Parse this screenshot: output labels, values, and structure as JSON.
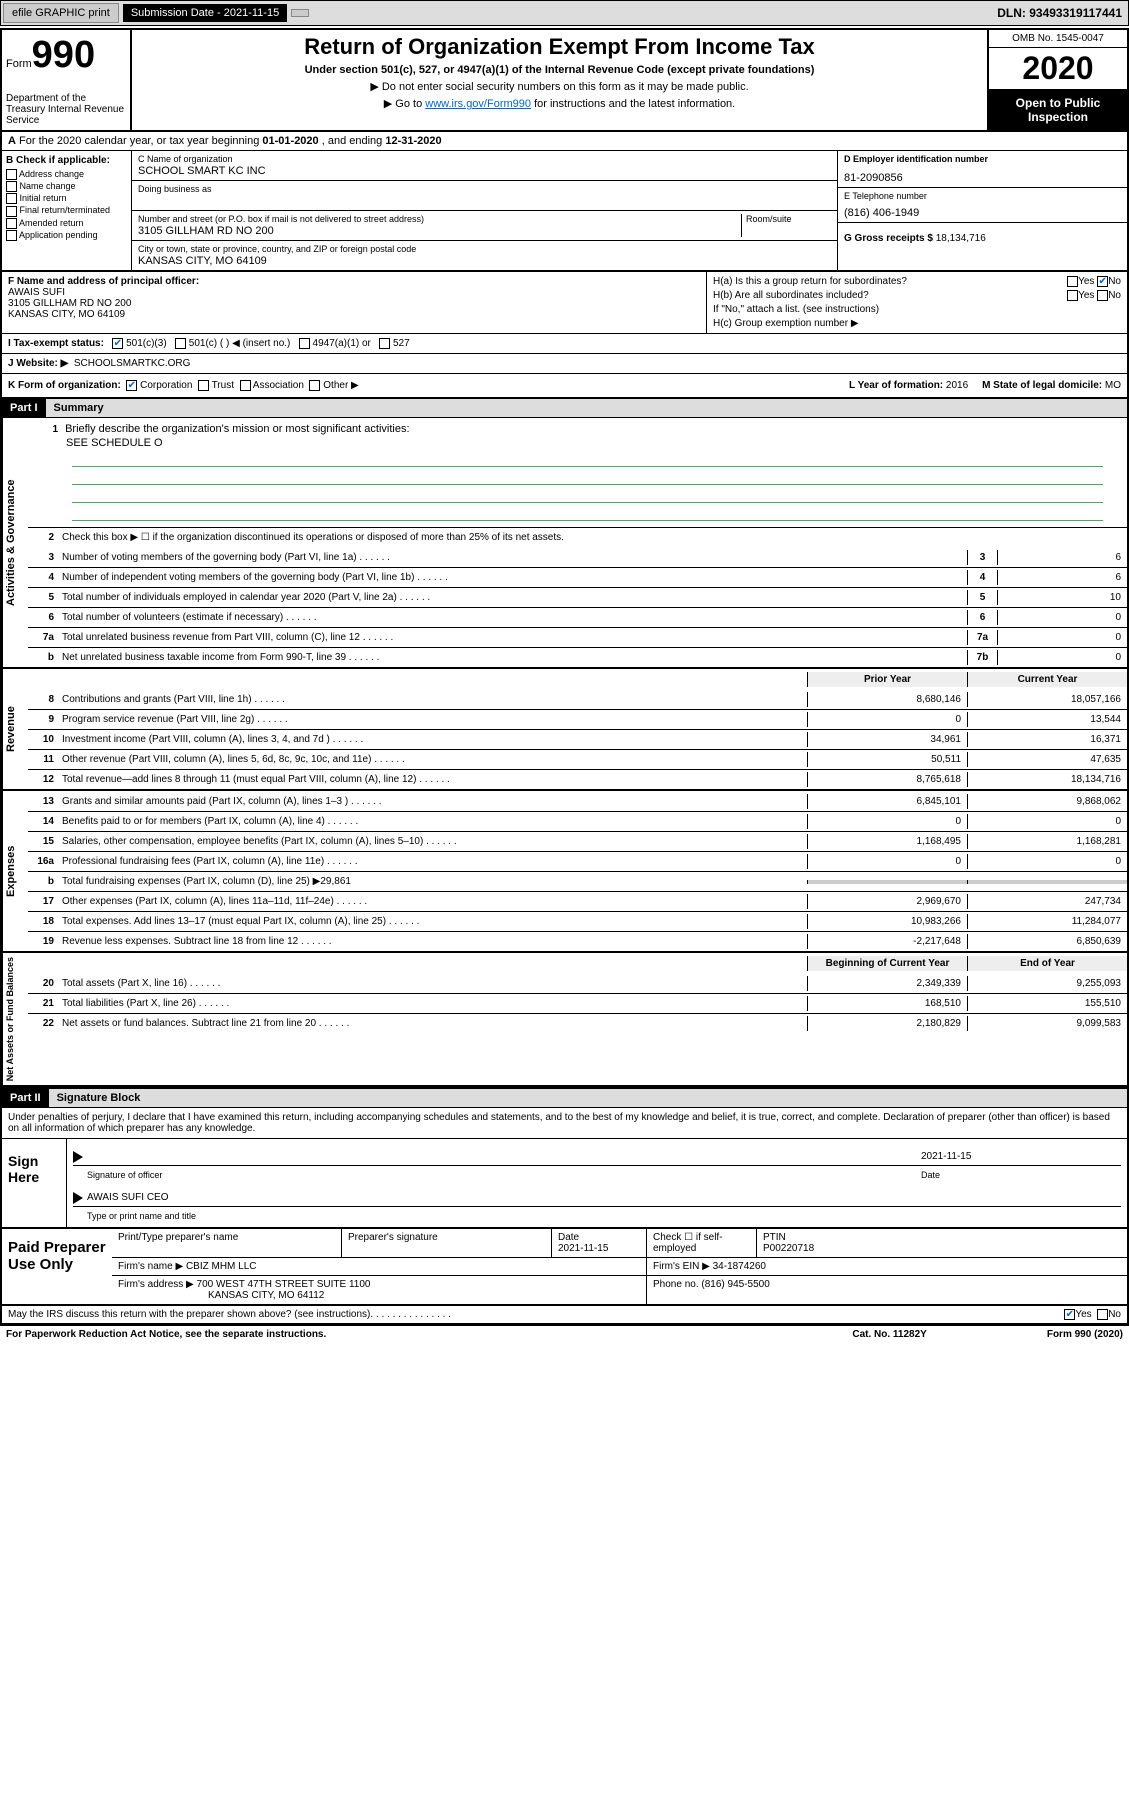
{
  "top_bar": {
    "efile": "efile GRAPHIC print",
    "submission_label": "Submission Date - 2021-11-15",
    "dln": "DLN: 93493319117441"
  },
  "header": {
    "form_word": "Form",
    "form_number": "990",
    "dept": "Department of the Treasury\nInternal Revenue Service",
    "title": "Return of Organization Exempt From Income Tax",
    "subtitle": "Under section 501(c), 527, or 4947(a)(1) of the Internal Revenue Code (except private foundations)",
    "note1": "▶ Do not enter social security numbers on this form as it may be made public.",
    "note2_pre": "▶ Go to ",
    "note2_link": "www.irs.gov/Form990",
    "note2_post": " for instructions and the latest information.",
    "omb": "OMB No. 1545-0047",
    "year": "2020",
    "open_public": "Open to Public Inspection"
  },
  "row_a": {
    "text_pre": "For the 2020 calendar year, or tax year beginning ",
    "begin": "01-01-2020",
    "mid": " , and ending ",
    "end": "12-31-2020"
  },
  "col_b": {
    "header": "B Check if applicable:",
    "opts": [
      "Address change",
      "Name change",
      "Initial return",
      "Final return/terminated",
      "Amended return",
      "Application pending"
    ]
  },
  "block_c": {
    "c_label": "C Name of organization",
    "c_name": "SCHOOL SMART KC INC",
    "dba_label": "Doing business as",
    "addr_label": "Number and street (or P.O. box if mail is not delivered to street address)",
    "room_label": "Room/suite",
    "addr": "3105 GILLHAM RD NO 200",
    "city_label": "City or town, state or province, country, and ZIP or foreign postal code",
    "city": "KANSAS CITY, MO  64109"
  },
  "block_d": {
    "d_label": "D Employer identification number",
    "ein": "81-2090856",
    "e_label": "E Telephone number",
    "phone": "(816) 406-1949",
    "g_label": "G Gross receipts $",
    "g_val": "18,134,716"
  },
  "block_f": {
    "f_label": "F Name and address of principal officer:",
    "name": "AWAIS SUFI",
    "addr1": "3105 GILLHAM RD NO 200",
    "addr2": "KANSAS CITY, MO  64109"
  },
  "block_h": {
    "ha": "H(a)  Is this a group return for subordinates?",
    "hb": "H(b)  Are all subordinates included?",
    "hb_note": "If \"No,\" attach a list. (see instructions)",
    "hc": "H(c)  Group exemption number ▶"
  },
  "row_i": {
    "label": "I  Tax-exempt status:",
    "opts": [
      "501(c)(3)",
      "501(c) (  ) ◀ (insert no.)",
      "4947(a)(1) or",
      "527"
    ]
  },
  "row_j": {
    "label": "J  Website: ▶",
    "val": "SCHOOLSMARTKC.ORG"
  },
  "row_k": {
    "k_label": "K Form of organization:",
    "k_opts": [
      "Corporation",
      "Trust",
      "Association",
      "Other ▶"
    ],
    "l_label": "L Year of formation:",
    "l_val": "2016",
    "m_label": "M State of legal domicile:",
    "m_val": "MO"
  },
  "part1": {
    "label": "Part I",
    "title": "Summary"
  },
  "summary": {
    "sections": [
      {
        "vert": "Activities & Governance",
        "lines": [
          {
            "num": "1",
            "desc": "Briefly describe the organization's mission or most significant activities:",
            "free": "SEE SCHEDULE O"
          },
          {
            "num": "2",
            "desc": "Check this box ▶ ☐  if the organization discontinued its operations or disposed of more than 25% of its net assets."
          },
          {
            "num": "3",
            "desc": "Number of voting members of the governing body (Part VI, line 1a)",
            "box": "3",
            "val": "6"
          },
          {
            "num": "4",
            "desc": "Number of independent voting members of the governing body (Part VI, line 1b)",
            "box": "4",
            "val": "6"
          },
          {
            "num": "5",
            "desc": "Total number of individuals employed in calendar year 2020 (Part V, line 2a)",
            "box": "5",
            "val": "10"
          },
          {
            "num": "6",
            "desc": "Total number of volunteers (estimate if necessary)",
            "box": "6",
            "val": "0"
          },
          {
            "num": "7a",
            "desc": "Total unrelated business revenue from Part VIII, column (C), line 12",
            "box": "7a",
            "val": "0"
          },
          {
            "num": "b",
            "desc": "Net unrelated business taxable income from Form 990-T, line 39",
            "box": "7b",
            "val": "0"
          }
        ]
      }
    ],
    "col_hdr": {
      "prior": "Prior Year",
      "curr": "Current Year"
    },
    "revenue": {
      "vert": "Revenue",
      "lines": [
        {
          "num": "8",
          "desc": "Contributions and grants (Part VIII, line 1h)",
          "prior": "8,680,146",
          "curr": "18,057,166"
        },
        {
          "num": "9",
          "desc": "Program service revenue (Part VIII, line 2g)",
          "prior": "0",
          "curr": "13,544"
        },
        {
          "num": "10",
          "desc": "Investment income (Part VIII, column (A), lines 3, 4, and 7d )",
          "prior": "34,961",
          "curr": "16,371"
        },
        {
          "num": "11",
          "desc": "Other revenue (Part VIII, column (A), lines 5, 6d, 8c, 9c, 10c, and 11e)",
          "prior": "50,511",
          "curr": "47,635"
        },
        {
          "num": "12",
          "desc": "Total revenue—add lines 8 through 11 (must equal Part VIII, column (A), line 12)",
          "prior": "8,765,618",
          "curr": "18,134,716"
        }
      ]
    },
    "expenses": {
      "vert": "Expenses",
      "lines": [
        {
          "num": "13",
          "desc": "Grants and similar amounts paid (Part IX, column (A), lines 1–3 )",
          "prior": "6,845,101",
          "curr": "9,868,062"
        },
        {
          "num": "14",
          "desc": "Benefits paid to or for members (Part IX, column (A), line 4)",
          "prior": "0",
          "curr": "0"
        },
        {
          "num": "15",
          "desc": "Salaries, other compensation, employee benefits (Part IX, column (A), lines 5–10)",
          "prior": "1,168,495",
          "curr": "1,168,281"
        },
        {
          "num": "16a",
          "desc": "Professional fundraising fees (Part IX, column (A), line 11e)",
          "prior": "0",
          "curr": "0"
        },
        {
          "num": "b",
          "desc": "Total fundraising expenses (Part IX, column (D), line 25) ▶29,861",
          "nocols": true
        },
        {
          "num": "17",
          "desc": "Other expenses (Part IX, column (A), lines 11a–11d, 11f–24e)",
          "prior": "2,969,670",
          "curr": "247,734"
        },
        {
          "num": "18",
          "desc": "Total expenses. Add lines 13–17 (must equal Part IX, column (A), line 25)",
          "prior": "10,983,266",
          "curr": "11,284,077"
        },
        {
          "num": "19",
          "desc": "Revenue less expenses. Subtract line 18 from line 12",
          "prior": "-2,217,648",
          "curr": "6,850,639"
        }
      ]
    },
    "netassets_hdr": {
      "prior": "Beginning of Current Year",
      "curr": "End of Year"
    },
    "netassets": {
      "vert": "Net Assets or Fund Balances",
      "lines": [
        {
          "num": "20",
          "desc": "Total assets (Part X, line 16)",
          "prior": "2,349,339",
          "curr": "9,255,093"
        },
        {
          "num": "21",
          "desc": "Total liabilities (Part X, line 26)",
          "prior": "168,510",
          "curr": "155,510"
        },
        {
          "num": "22",
          "desc": "Net assets or fund balances. Subtract line 21 from line 20",
          "prior": "2,180,829",
          "curr": "9,099,583"
        }
      ]
    }
  },
  "part2": {
    "label": "Part II",
    "title": "Signature Block",
    "perjury": "Under penalties of perjury, I declare that I have examined this return, including accompanying schedules and statements, and to the best of my knowledge and belief, it is true, correct, and complete. Declaration of preparer (other than officer) is based on all information of which preparer has any knowledge."
  },
  "sign": {
    "left": "Sign Here",
    "sig_label": "Signature of officer",
    "date_label": "Date",
    "date": "2021-11-15",
    "name": "AWAIS SUFI CEO",
    "name_label": "Type or print name and title"
  },
  "prep": {
    "left": "Paid Preparer Use Only",
    "h1": "Print/Type preparer's name",
    "h2": "Preparer's signature",
    "h3": "Date",
    "h3v": "2021-11-15",
    "h4": "Check ☐ if self-employed",
    "h5": "PTIN",
    "h5v": "P00220718",
    "firm_label": "Firm's name    ▶",
    "firm": "CBIZ MHM LLC",
    "ein_label": "Firm's EIN ▶",
    "ein": "34-1874260",
    "addr_label": "Firm's address ▶",
    "addr1": "700 WEST 47TH STREET SUITE 1100",
    "addr2": "KANSAS CITY, MO  64112",
    "phone_label": "Phone no.",
    "phone": "(816) 945-5500"
  },
  "footer": {
    "discuss": "May the IRS discuss this return with the preparer shown above? (see instructions)",
    "paperwork": "For Paperwork Reduction Act Notice, see the separate instructions.",
    "cat": "Cat. No. 11282Y",
    "form": "Form 990 (2020)"
  }
}
